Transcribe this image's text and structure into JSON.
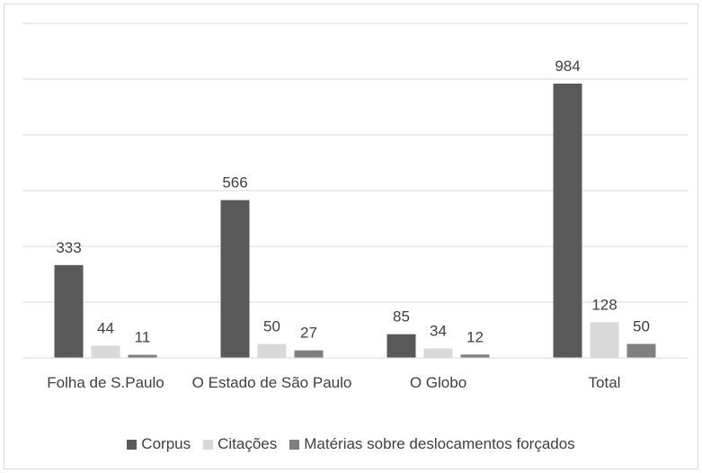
{
  "chart_data": {
    "type": "bar",
    "categories": [
      "Folha de S.Paulo",
      "O Estado de São Paulo",
      "O Globo",
      "Total"
    ],
    "series": [
      {
        "name": "Corpus",
        "color": "#595959",
        "values": [
          333,
          566,
          85,
          984
        ]
      },
      {
        "name": "Citações",
        "color": "#d9d9d9",
        "values": [
          44,
          50,
          34,
          128
        ]
      },
      {
        "name": "Matérias sobre deslocamentos forçados",
        "color": "#7f7f7f",
        "values": [
          11,
          27,
          12,
          50
        ]
      }
    ],
    "ylim": [
      0,
      1200
    ],
    "yticks": [
      0,
      200,
      400,
      600,
      800,
      1000,
      1200
    ],
    "grid": true,
    "legend": "bottom"
  }
}
